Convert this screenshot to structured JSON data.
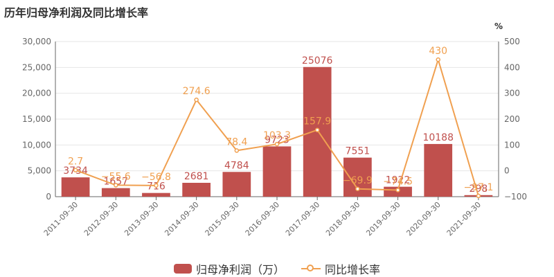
{
  "title": "历年归母净利润及同比增长率",
  "colors": {
    "bar": "#c0504d",
    "line": "#f0a050",
    "axis": "#666666",
    "grid": "#e6e6e6"
  },
  "legend": {
    "bar_label": "归母净利润（万）",
    "line_label": "同比增长率"
  },
  "chart_data": {
    "type": "bar",
    "categories": [
      "2011-09-30",
      "2012-09-30",
      "2013-09-30",
      "2014-09-30",
      "2015-09-30",
      "2016-09-30",
      "2017-09-30",
      "2018-09-30",
      "2019-09-30",
      "2020-09-30",
      "2021-09-30"
    ],
    "series": [
      {
        "name": "归母净利润（万）",
        "type": "bar",
        "axis": "left",
        "values": [
          3734,
          1657,
          716,
          2681,
          4784,
          9723,
          25076,
          7551,
          1922,
          10188,
          298
        ],
        "labels": [
          "3734",
          "1657",
          "716",
          "2681",
          "4784",
          "9723",
          "25076",
          "7551",
          "1922",
          "10188",
          "298"
        ]
      },
      {
        "name": "同比增长率",
        "type": "line",
        "axis": "right",
        "values": [
          2.7,
          -55.6,
          -56.8,
          274.6,
          78.4,
          103.3,
          157.9,
          -69.9,
          -74.5,
          430,
          -97.1
        ],
        "labels": [
          "2.7",
          "−55.6",
          "−56.8",
          "274.6",
          "78.4",
          "103.3",
          "157.9",
          "−69.9",
          "−74.5",
          "430",
          "−97.1"
        ]
      }
    ],
    "y_left": {
      "min": 0,
      "max": 30000,
      "ticks": [
        "0",
        "5,000",
        "10,000",
        "15,000",
        "20,000",
        "25,000",
        "30,000"
      ]
    },
    "y_right": {
      "min": -100,
      "max": 500,
      "unit": "%",
      "ticks": [
        "−100",
        "0",
        "100",
        "200",
        "300",
        "400",
        "500"
      ]
    },
    "grid": true,
    "legend_position": "bottom"
  }
}
